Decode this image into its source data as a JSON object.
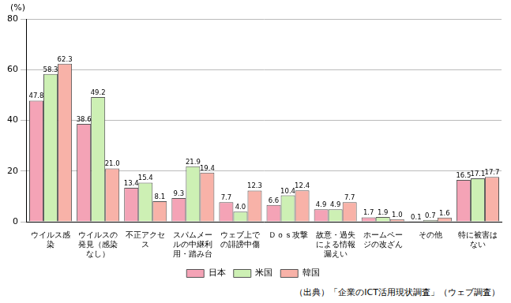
{
  "chart_data": {
    "type": "bar",
    "y_label": "(%)",
    "annotations": [
      "（出典）「企業のICT活用現状調査」（ウェブ調査）"
    ],
    "categories": [
      "ウイルス感染",
      "ウイルスの発見（感染なし）",
      "不正アクセス",
      "スパムメールの中継利用・踏み台",
      "ウェブ上での誹謗中傷",
      "Ｄｏｓ攻撃",
      "故意・過失による情報漏えい",
      "ホームページの改ざん",
      "その他",
      "特に被害はない"
    ],
    "series": [
      {
        "name": "日本",
        "color": "#f4a3b6",
        "values": [
          47.8,
          38.6,
          13.4,
          9.3,
          7.7,
          6.6,
          4.9,
          1.7,
          0.1,
          16.5
        ],
        "value_labels": [
          "47.8",
          "38.6",
          "13.4",
          "9.3",
          "7.7",
          "6.6",
          "4.9",
          "1.7",
          "0.1",
          "16.5"
        ]
      },
      {
        "name": "米国",
        "color": "#cdf0b4",
        "values": [
          58.3,
          49.2,
          15.4,
          21.9,
          4.0,
          10.4,
          4.9,
          1.9,
          0.7,
          17.1
        ],
        "value_labels": [
          "58.3",
          "49.2",
          "15.4",
          "21.9",
          "4.0",
          "10.4",
          "4.9",
          "1.9",
          "0.7",
          "17.1"
        ]
      },
      {
        "name": "韓国",
        "color": "#f8b2a8",
        "values": [
          62.3,
          21.0,
          8.1,
          19.4,
          12.3,
          12.4,
          7.7,
          1.0,
          1.6,
          17.7
        ],
        "value_labels": [
          "62.3",
          "21.0",
          "8.1",
          "19.4",
          "12.3",
          "12.4",
          "7.7",
          "1.0",
          "1.6",
          "17.7"
        ]
      }
    ],
    "ylim": [
      0,
      80
    ],
    "yticks": [
      0,
      20,
      40,
      60,
      80
    ],
    "grid": true,
    "legend": "bottom",
    "data_labels": true
  }
}
